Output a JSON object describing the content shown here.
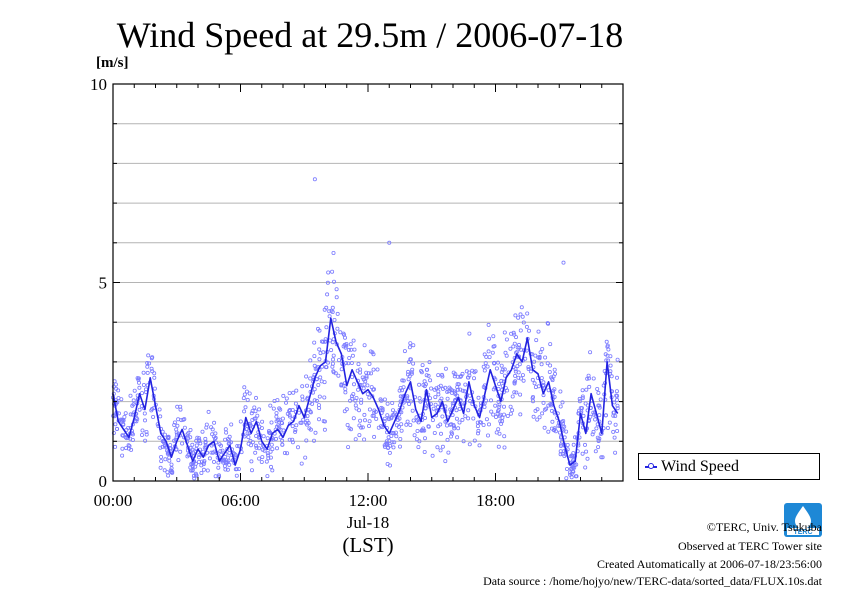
{
  "chart_data": {
    "type": "scatter",
    "title": "Wind Speed at 29.5m / 2006-07-18",
    "ylabel": "[m/s]",
    "xlabel_date": "Jul-18",
    "xlabel_tz": "(LST)",
    "x_ticks": [
      "00:00",
      "06:00",
      "12:00",
      "18:00"
    ],
    "x_tick_hours": [
      0,
      6,
      12,
      18
    ],
    "xlim_hours": [
      0,
      24
    ],
    "y_ticks": [
      0,
      5,
      10
    ],
    "ylim": [
      0,
      10
    ],
    "grid": true,
    "legend": "right",
    "series": [
      {
        "name": "Wind Speed",
        "color": "#2323e0",
        "point_color": "#7b7bff",
        "x_hours": [
          0.0,
          0.25,
          0.5,
          0.75,
          1.0,
          1.25,
          1.5,
          1.75,
          2.0,
          2.25,
          2.5,
          2.75,
          3.0,
          3.25,
          3.5,
          3.75,
          4.0,
          4.25,
          4.5,
          4.75,
          5.0,
          5.25,
          5.5,
          5.75,
          6.0,
          6.25,
          6.5,
          6.75,
          7.0,
          7.25,
          7.5,
          7.75,
          8.0,
          8.25,
          8.5,
          8.75,
          9.0,
          9.25,
          9.5,
          9.75,
          10.0,
          10.25,
          10.5,
          10.75,
          11.0,
          11.25,
          11.5,
          11.75,
          12.0,
          12.25,
          12.5,
          12.75,
          13.0,
          13.25,
          13.5,
          13.75,
          14.0,
          14.25,
          14.5,
          14.75,
          15.0,
          15.25,
          15.5,
          15.75,
          16.0,
          16.25,
          16.5,
          16.75,
          17.0,
          17.25,
          17.5,
          17.75,
          18.0,
          18.25,
          18.5,
          18.75,
          19.0,
          19.25,
          19.5,
          19.75,
          20.0,
          20.25,
          20.5,
          20.75,
          21.0,
          21.25,
          21.5,
          21.75,
          22.0,
          22.25,
          22.5,
          22.75,
          23.0,
          23.25,
          23.5,
          23.75
        ],
        "values": [
          2.2,
          1.5,
          1.3,
          1.1,
          1.6,
          2.2,
          1.8,
          2.6,
          1.9,
          1.2,
          1.0,
          0.6,
          1.0,
          1.3,
          0.9,
          0.5,
          0.8,
          0.6,
          0.9,
          1.0,
          0.5,
          0.7,
          0.9,
          0.4,
          0.8,
          1.6,
          1.2,
          1.5,
          1.0,
          0.8,
          1.2,
          1.3,
          1.1,
          1.4,
          1.5,
          1.9,
          1.6,
          2.1,
          2.6,
          2.9,
          3.0,
          4.1,
          3.5,
          3.2,
          2.4,
          2.8,
          2.5,
          2.2,
          2.3,
          2.1,
          1.8,
          1.4,
          1.2,
          1.5,
          1.8,
          2.2,
          2.5,
          1.8,
          1.5,
          2.3,
          1.6,
          1.7,
          2.0,
          1.5,
          1.8,
          2.1,
          1.7,
          2.5,
          1.9,
          1.6,
          2.2,
          2.8,
          2.4,
          2.0,
          2.6,
          2.8,
          3.2,
          3.0,
          3.6,
          2.8,
          2.7,
          2.2,
          2.5,
          1.9,
          1.5,
          0.9,
          0.4,
          0.5,
          1.7,
          1.2,
          2.2,
          1.7,
          1.2,
          3.0,
          1.9,
          1.7
        ]
      }
    ],
    "outliers": [
      {
        "x_hours": 9.5,
        "y": 7.6
      },
      {
        "x_hours": 13.0,
        "y": 6.0
      },
      {
        "x_hours": 21.2,
        "y": 5.5
      }
    ]
  },
  "footer": {
    "copyright": "©TERC, Univ. Tsukuba",
    "site": "Observed at TERC Tower site",
    "created": "Created Automatically at 2006-07-18/23:56:00",
    "source": "Data source : /home/hojyo/new/TERC-data/sorted_data/FLUX.10s.dat"
  },
  "logo": {
    "text": "TERC",
    "color": "#1e88d6"
  }
}
